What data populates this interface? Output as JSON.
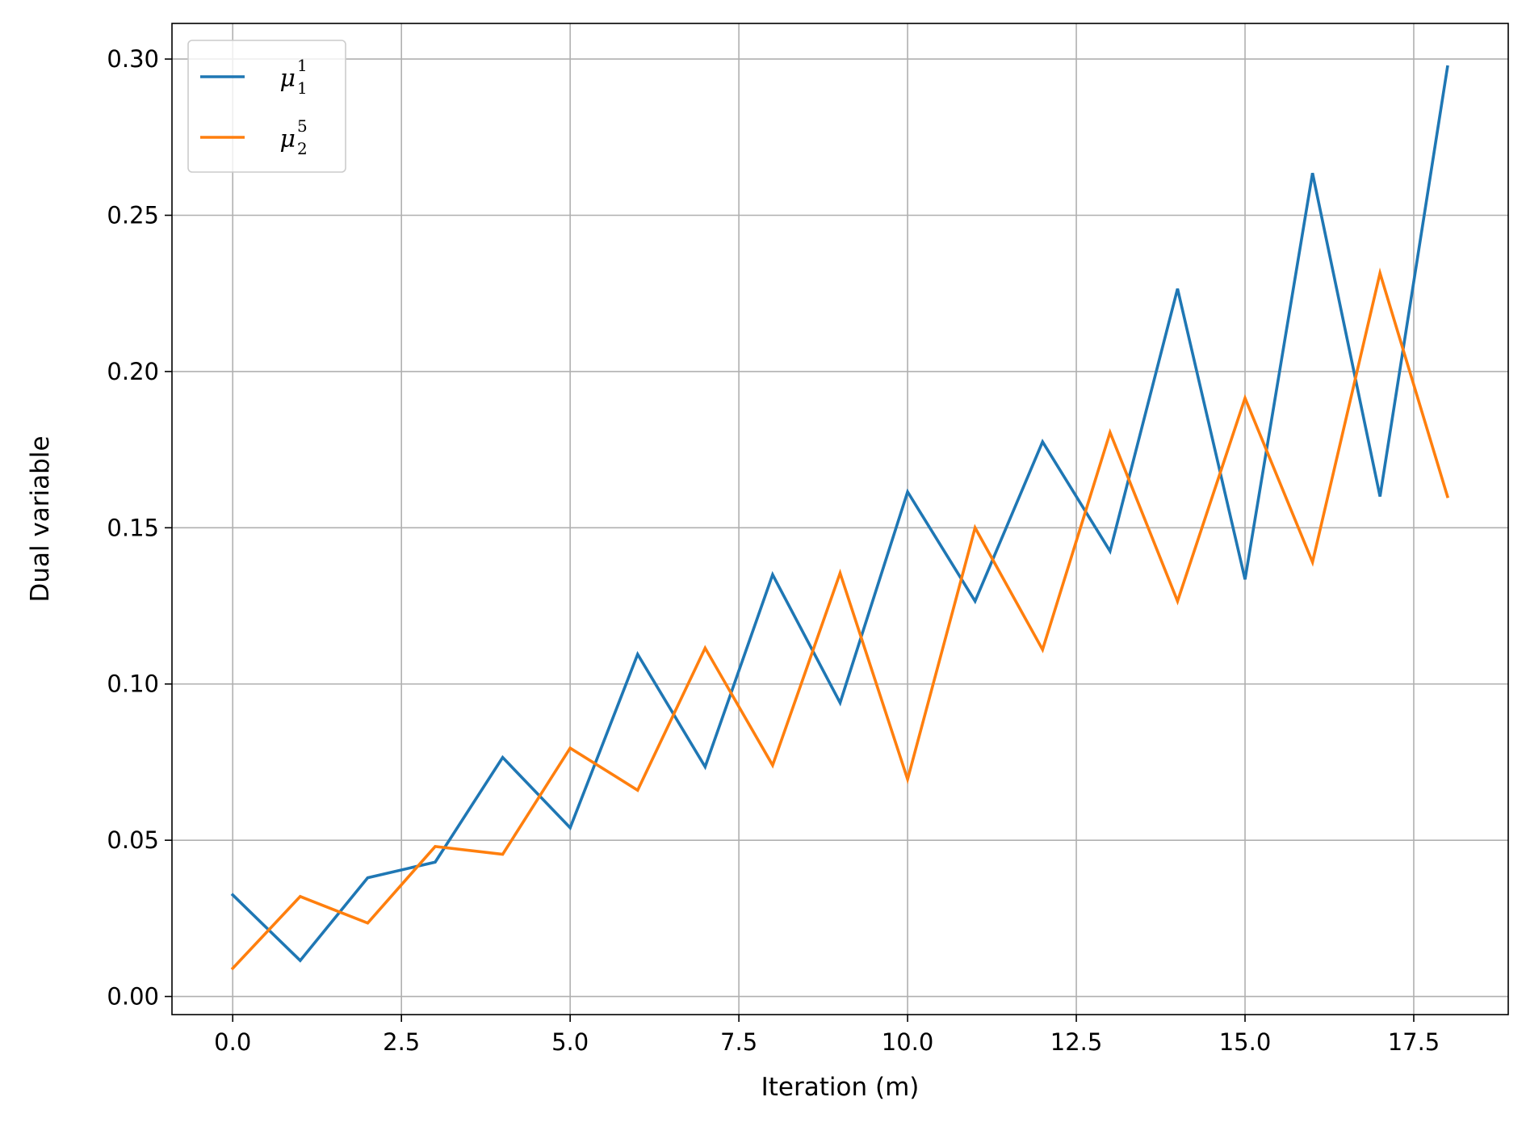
{
  "chart_data": {
    "type": "line",
    "title": "",
    "xlabel": "Iteration (m)",
    "ylabel": "Dual variable",
    "xlim": [
      -0.9,
      18.9
    ],
    "ylim": [
      -0.0058,
      0.3114
    ],
    "xticks": [
      0.0,
      2.5,
      5.0,
      7.5,
      10.0,
      12.5,
      15.0,
      17.5
    ],
    "xtick_labels": [
      "0.0",
      "2.5",
      "5.0",
      "7.5",
      "10.0",
      "12.5",
      "15.0",
      "17.5"
    ],
    "yticks": [
      0.0,
      0.05,
      0.1,
      0.15,
      0.2,
      0.25,
      0.3
    ],
    "ytick_labels": [
      "0.00",
      "0.05",
      "0.10",
      "0.15",
      "0.20",
      "0.25",
      "0.30"
    ],
    "grid": true,
    "legend_position": "top-left",
    "x": [
      0,
      1,
      2,
      3,
      4,
      5,
      6,
      7,
      8,
      9,
      10,
      11,
      12,
      13,
      14,
      15,
      16,
      17,
      18
    ],
    "series": [
      {
        "name": "μ",
        "name_sup": "1",
        "name_sub": "1",
        "color": "#1f77b4",
        "values": [
          0.0325,
          0.0115,
          0.038,
          0.043,
          0.0765,
          0.054,
          0.1095,
          0.0735,
          0.135,
          0.094,
          0.1615,
          0.1265,
          0.1775,
          0.1425,
          0.2265,
          0.1335,
          0.2635,
          0.16,
          0.2975
        ]
      },
      {
        "name": "μ",
        "name_sup": "5",
        "name_sub": "2",
        "color": "#ff7f0e",
        "values": [
          0.009,
          0.032,
          0.0235,
          0.048,
          0.0455,
          0.0795,
          0.066,
          0.1115,
          0.074,
          0.1355,
          0.0695,
          0.15,
          0.111,
          0.1805,
          0.1265,
          0.1915,
          0.139,
          0.2315,
          0.16
        ]
      }
    ]
  }
}
